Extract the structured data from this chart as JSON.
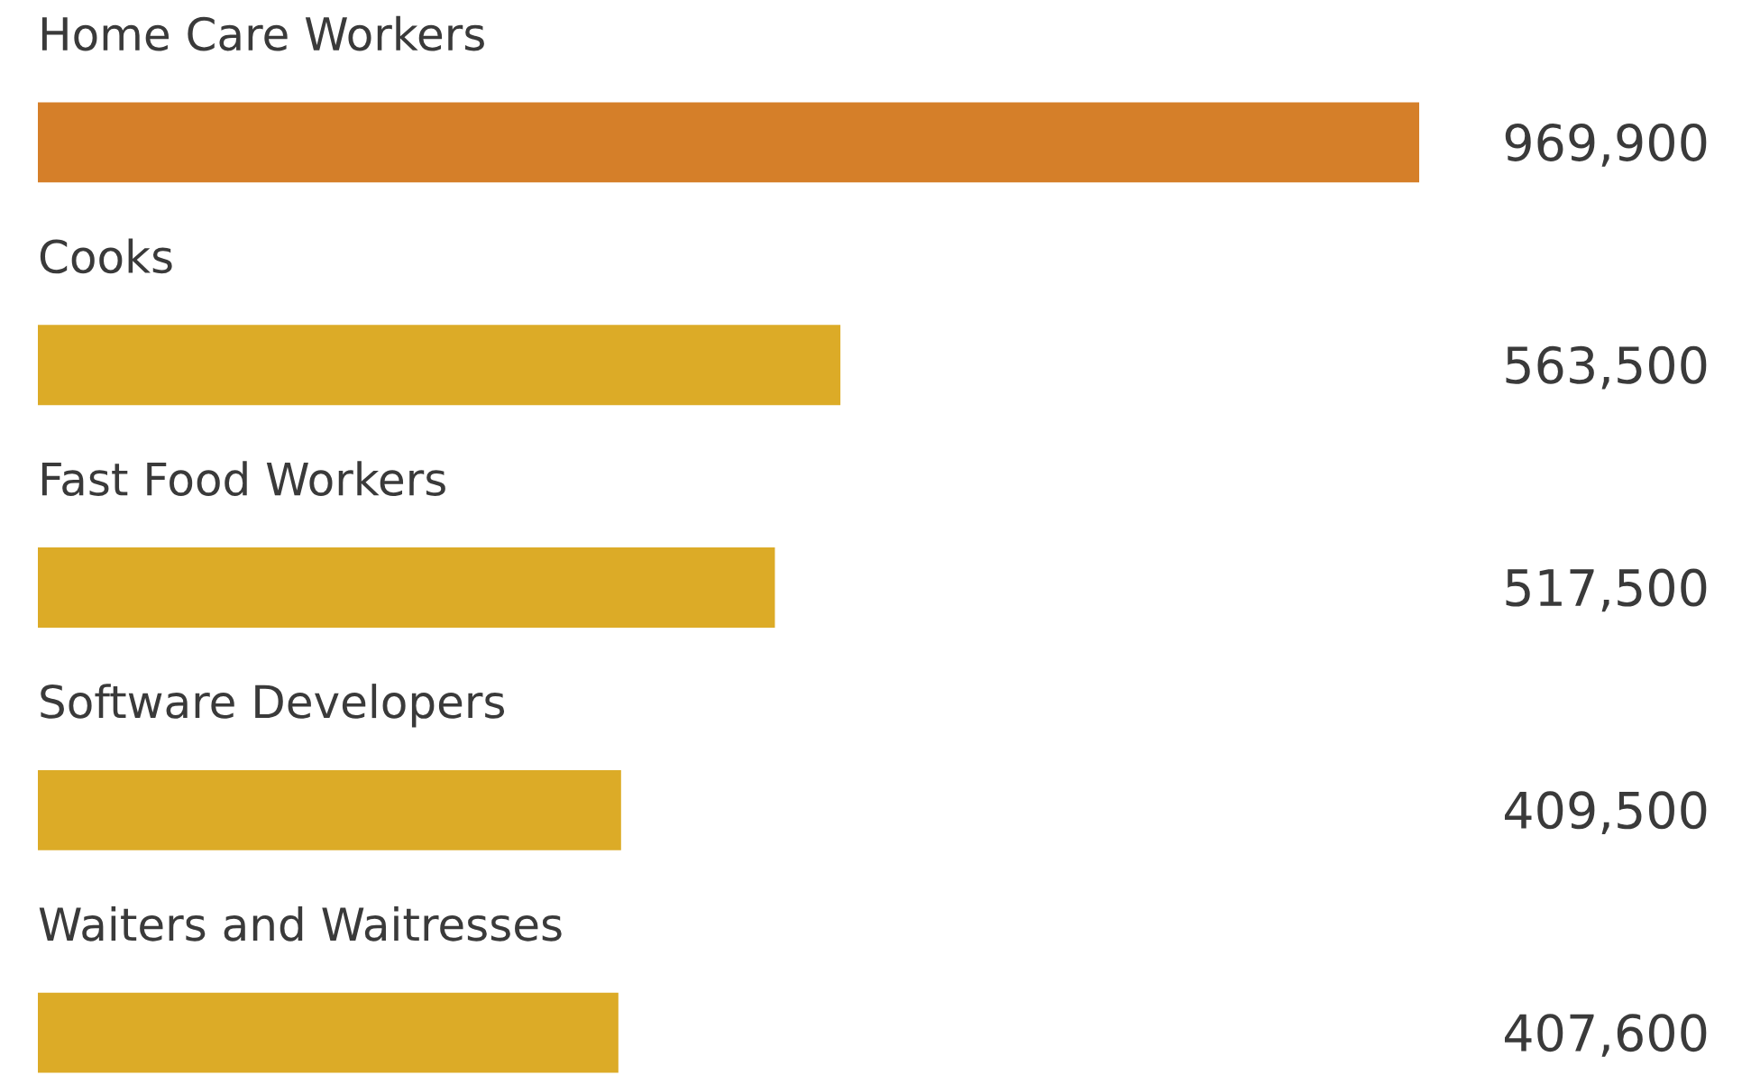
{
  "chart_data": {
    "type": "bar",
    "orientation": "horizontal",
    "categories": [
      "Home Care Workers",
      "Cooks",
      "Fast Food Workers",
      "Software Developers",
      "Waiters and Waitresses"
    ],
    "values": [
      969900,
      563500,
      517500,
      409500,
      407600
    ],
    "colors": [
      "#d57f29",
      "#dcab27",
      "#dcab27",
      "#dcab27",
      "#dcab27"
    ],
    "value_labels": [
      "969,900",
      "563,500",
      "517,500",
      "409,500",
      "407,600"
    ]
  }
}
